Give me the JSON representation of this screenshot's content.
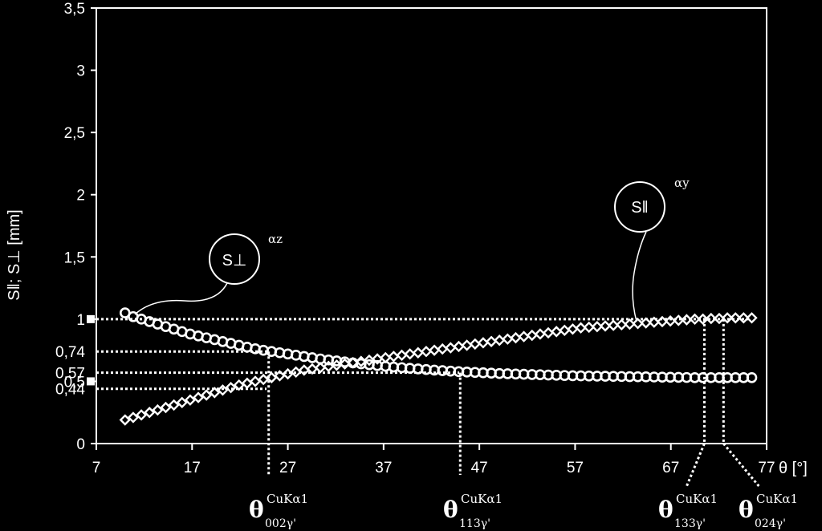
{
  "chart_data": {
    "type": "scatter",
    "xlabel": "θ [°]",
    "ylabel": "S‖; S⊥ [mm]",
    "xlim": [
      7,
      77
    ],
    "ylim": [
      0,
      3.5
    ],
    "x_ticks": [
      "7",
      "17",
      "27",
      "37",
      "47",
      "57",
      "67",
      "77"
    ],
    "y_ticks": [
      "0",
      "0,5",
      "1",
      "1,5",
      "2",
      "2,5",
      "3",
      "3,5"
    ],
    "extra_y_ticks": [
      "0,44",
      "0,57",
      "0,74"
    ],
    "grid": false,
    "series": [
      {
        "name": "S⊥",
        "marker": "circle",
        "x": [
          10,
          10.85,
          11.7,
          12.55,
          13.4,
          14.25,
          15.1,
          15.95,
          16.8,
          17.65,
          18.5,
          19.35,
          20.2,
          21.05,
          21.9,
          22.75,
          23.6,
          24.45,
          25.3,
          26.15,
          27,
          27.85,
          28.7,
          29.55,
          30.4,
          31.25,
          32.1,
          32.95,
          33.8,
          34.65,
          35.5,
          36.35,
          37.2,
          38.05,
          38.9,
          39.75,
          40.6,
          41.45,
          42.3,
          43.15,
          44,
          44.85,
          45.7,
          46.55,
          47.4,
          48.25,
          49.1,
          49.95,
          50.8,
          51.65,
          52.5,
          53.35,
          54.2,
          55.05,
          55.9,
          56.75,
          57.6,
          58.45,
          59.3,
          60.15,
          61,
          61.85,
          62.7,
          63.55,
          64.4,
          65.25,
          66.1,
          66.95,
          67.8,
          68.65,
          69.5,
          70.35,
          71.2,
          72.05,
          72.9,
          73.75,
          74.6,
          75.45
        ],
        "y": [
          1.05,
          1.02,
          1,
          0.98,
          0.96,
          0.94,
          0.92,
          0.9,
          0.88,
          0.865,
          0.85,
          0.835,
          0.82,
          0.805,
          0.79,
          0.775,
          0.762,
          0.75,
          0.74,
          0.73,
          0.72,
          0.71,
          0.7,
          0.69,
          0.68,
          0.672,
          0.664,
          0.656,
          0.648,
          0.641,
          0.634,
          0.627,
          0.621,
          0.615,
          0.61,
          0.605,
          0.6,
          0.595,
          0.59,
          0.586,
          0.582,
          0.578,
          0.575,
          0.572,
          0.569,
          0.566,
          0.563,
          0.561,
          0.559,
          0.557,
          0.555,
          0.553,
          0.551,
          0.549,
          0.547,
          0.545,
          0.544,
          0.543,
          0.542,
          0.541,
          0.54,
          0.539,
          0.538,
          0.537,
          0.536,
          0.535,
          0.534,
          0.533,
          0.532,
          0.531,
          0.53,
          0.53,
          0.53,
          0.53,
          0.53,
          0.53,
          0.53,
          0.53
        ]
      },
      {
        "name": "S‖",
        "marker": "diamond",
        "x": [
          10,
          10.85,
          11.7,
          12.55,
          13.4,
          14.25,
          15.1,
          15.95,
          16.8,
          17.65,
          18.5,
          19.35,
          20.2,
          21.05,
          21.9,
          22.75,
          23.6,
          24.45,
          25.3,
          26.15,
          27,
          27.85,
          28.7,
          29.55,
          30.4,
          31.25,
          32.1,
          32.95,
          33.8,
          34.65,
          35.5,
          36.35,
          37.2,
          38.05,
          38.9,
          39.75,
          40.6,
          41.45,
          42.3,
          43.15,
          44,
          44.85,
          45.7,
          46.55,
          47.4,
          48.25,
          49.1,
          49.95,
          50.8,
          51.65,
          52.5,
          53.35,
          54.2,
          55.05,
          55.9,
          56.75,
          57.6,
          58.45,
          59.3,
          60.15,
          61,
          61.85,
          62.7,
          63.55,
          64.4,
          65.25,
          66.1,
          66.95,
          67.8,
          68.65,
          69.5,
          70.35,
          71.2,
          72.05,
          72.9,
          73.75,
          74.6,
          75.45
        ],
        "y": [
          0.19,
          0.21,
          0.23,
          0.25,
          0.27,
          0.29,
          0.31,
          0.33,
          0.35,
          0.37,
          0.39,
          0.41,
          0.43,
          0.45,
          0.47,
          0.485,
          0.5,
          0.515,
          0.53,
          0.545,
          0.56,
          0.575,
          0.59,
          0.6,
          0.61,
          0.62,
          0.63,
          0.64,
          0.65,
          0.66,
          0.67,
          0.68,
          0.69,
          0.7,
          0.71,
          0.72,
          0.73,
          0.74,
          0.75,
          0.76,
          0.77,
          0.78,
          0.79,
          0.8,
          0.81,
          0.82,
          0.83,
          0.84,
          0.85,
          0.86,
          0.87,
          0.88,
          0.89,
          0.9,
          0.91,
          0.92,
          0.93,
          0.935,
          0.94,
          0.945,
          0.95,
          0.955,
          0.96,
          0.965,
          0.97,
          0.975,
          0.98,
          0.985,
          0.99,
          0.995,
          1.0,
          1.0,
          1.005,
          1.005,
          1.01,
          1.01,
          1.01,
          1.01
        ]
      }
    ],
    "h_lines": [
      1,
      0.74,
      0.57,
      0.44
    ],
    "v_lines": [
      {
        "x": 25,
        "sub": "002γ'"
      },
      {
        "x": 45,
        "sub": "113γ'"
      },
      {
        "x": 70.5,
        "sub": "133γ'"
      },
      {
        "x": 72.5,
        "sub": "024γ'"
      }
    ],
    "theta_symbol": "θ",
    "theta_sup": "CuKα1",
    "annotations": [
      {
        "label": "S⊥",
        "angle": "αz"
      },
      {
        "label": "S‖",
        "angle": "αy"
      }
    ]
  }
}
